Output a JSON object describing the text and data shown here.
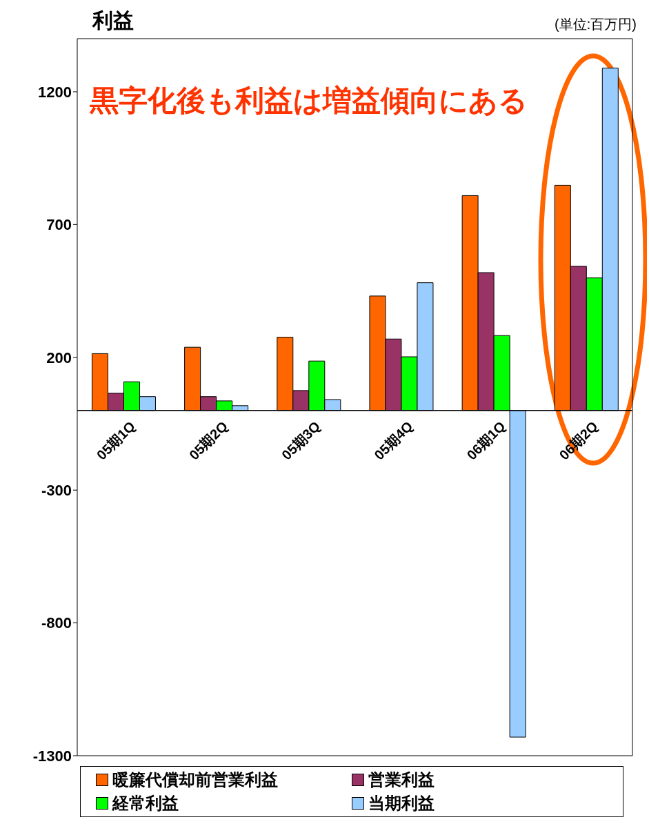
{
  "chart_data": {
    "type": "bar",
    "title": "利益",
    "categories": [
      "05期1Q",
      "05期2Q",
      "05期3Q",
      "05期4Q",
      "06期1Q",
      "06期2Q"
    ],
    "series": [
      {
        "name": "暖簾代償却前営業利益",
        "color": "#ff6600",
        "values": [
          214,
          238,
          276,
          431,
          809,
          848
        ]
      },
      {
        "name": "営業利益",
        "color": "#993366",
        "values": [
          65,
          52,
          75,
          269,
          519,
          543
        ]
      },
      {
        "name": "経常利益",
        "color": "#00ff00",
        "values": [
          108,
          36,
          186,
          202,
          282,
          499
        ]
      },
      {
        "name": "当期利益",
        "color": "#99ccff",
        "values": [
          52,
          18,
          41,
          481,
          -1230,
          1289
        ]
      }
    ],
    "ylim": [
      -1300,
      1400
    ],
    "yticks": [
      1200,
      700,
      200,
      -300,
      -800,
      -1300
    ],
    "grid": false,
    "legend": "bottom",
    "annotations": [
      "(単位:百万円)",
      "黒字化後も利益は増益傾向にある"
    ]
  }
}
